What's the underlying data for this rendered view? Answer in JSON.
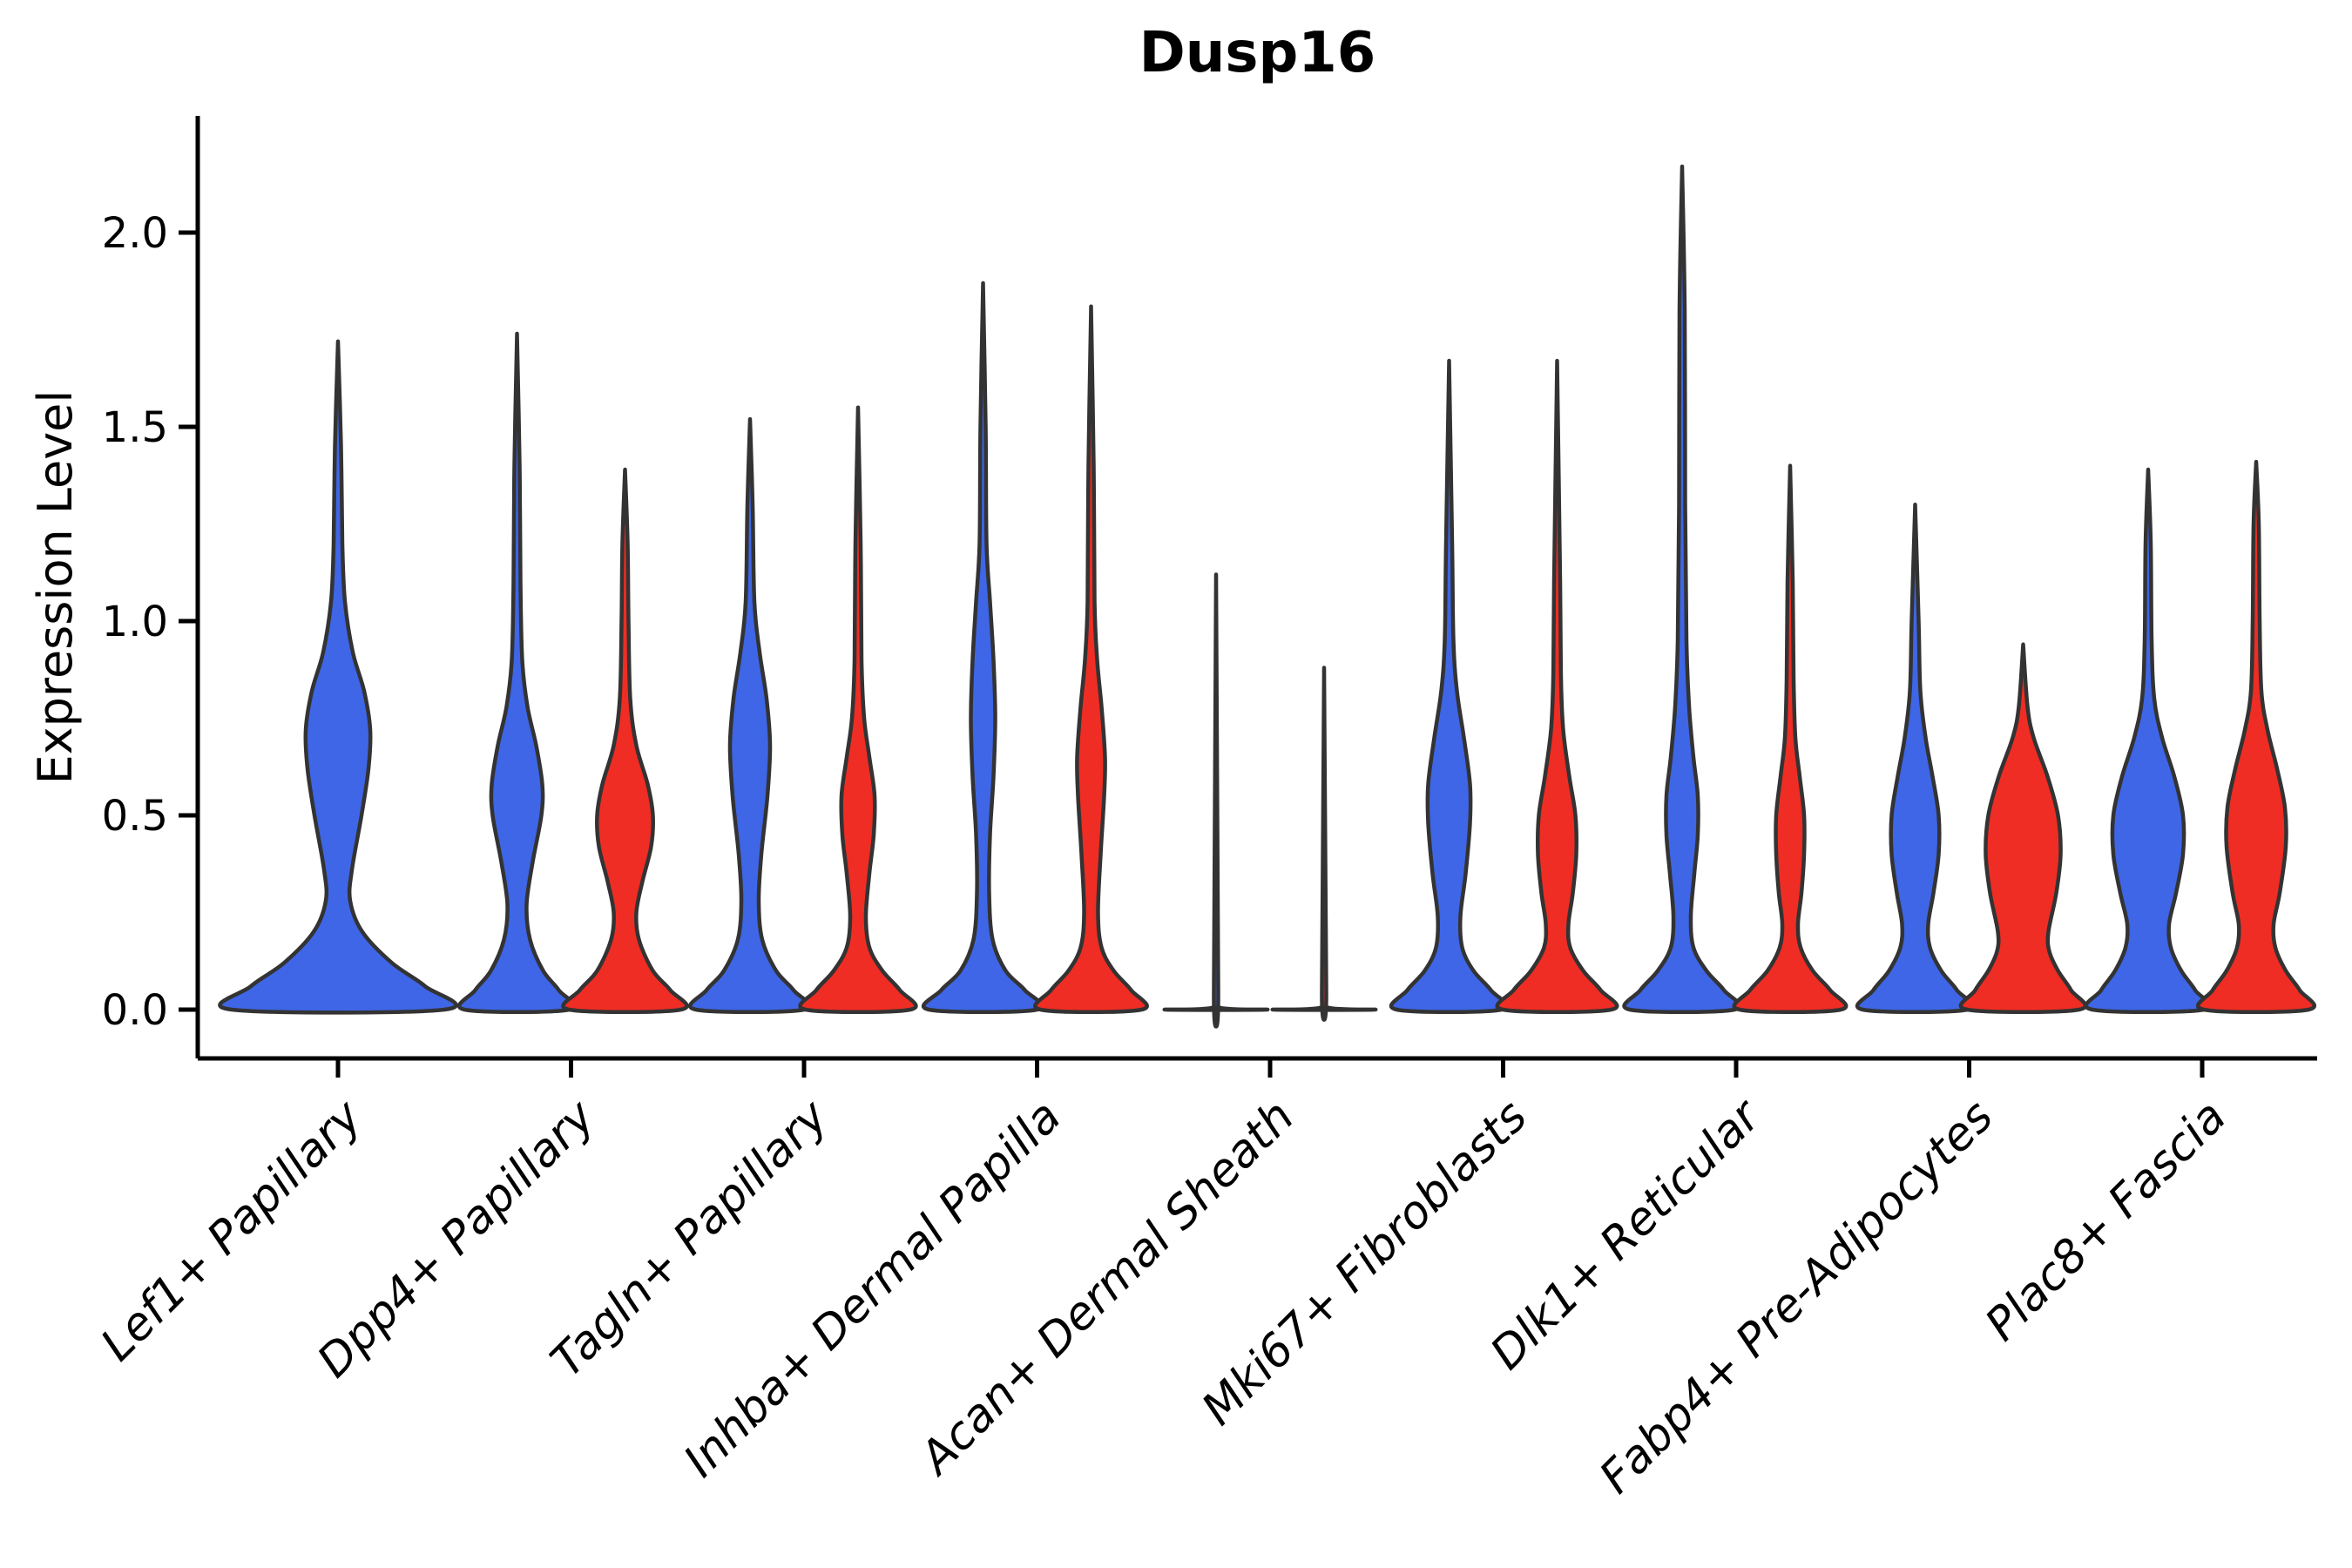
{
  "chart_data": {
    "type": "violin",
    "title": "Dusp16",
    "ylabel": "Expression Level",
    "ylim": [
      -0.12,
      2.3
    ],
    "yticks": [
      0.0,
      0.5,
      1.0,
      1.5,
      2.0
    ],
    "yticklabels": [
      "0.0",
      "0.5",
      "1.0",
      "1.5",
      "2.0"
    ],
    "grid": false,
    "legend": "none",
    "palette": {
      "blue": "#3E66E6",
      "red": "#EF2D24"
    },
    "outline_color": "#333333",
    "axis_color": "#000000",
    "categories": [
      "Lef1+ Papillary",
      "Dpp4+ Papillary",
      "Tagln+ Papillary",
      "Inhba+ Dermal Papilla",
      "Acan+ Dermal Sheath",
      "Mki67+ Fibroblasts",
      "Dlk1+ Reticular",
      "Fabp4+ Pre-Adipocytes",
      "Plac8+ Fascia"
    ],
    "groups": [
      {
        "category": "Lef1+ Papillary",
        "slug": "lef1-papillary",
        "violins": [
          {
            "color": "blue",
            "position": "single",
            "max": 1.72,
            "profile": [
              [
                0,
                122
              ],
              [
                0.06,
                100
              ],
              [
                0.12,
                62
              ],
              [
                0.2,
                28
              ],
              [
                0.28,
                14
              ],
              [
                0.36,
                16
              ],
              [
                0.5,
                27
              ],
              [
                0.62,
                35
              ],
              [
                0.72,
                37
              ],
              [
                0.82,
                30
              ],
              [
                0.92,
                17
              ],
              [
                1.05,
                8
              ],
              [
                1.2,
                5
              ],
              [
                1.45,
                3.5
              ],
              [
                1.72,
                2.5
              ]
            ]
          }
        ]
      },
      {
        "category": "Dpp4+ Papillary",
        "slug": "dpp4-papillary",
        "violins": [
          {
            "color": "blue",
            "position": "left",
            "max": 1.74,
            "profile": [
              [
                0,
                60
              ],
              [
                0.05,
                48
              ],
              [
                0.1,
                30
              ],
              [
                0.18,
                15
              ],
              [
                0.27,
                11
              ],
              [
                0.38,
                18
              ],
              [
                0.5,
                28
              ],
              [
                0.58,
                29
              ],
              [
                0.68,
                22
              ],
              [
                0.78,
                12
              ],
              [
                0.9,
                6
              ],
              [
                1.1,
                4
              ],
              [
                1.4,
                3
              ],
              [
                1.74,
                2.5
              ]
            ]
          },
          {
            "color": "red",
            "position": "right",
            "max": 1.39,
            "profile": [
              [
                0,
                64
              ],
              [
                0.05,
                52
              ],
              [
                0.1,
                32
              ],
              [
                0.18,
                16
              ],
              [
                0.25,
                13
              ],
              [
                0.33,
                20
              ],
              [
                0.42,
                30
              ],
              [
                0.5,
                32
              ],
              [
                0.58,
                26
              ],
              [
                0.68,
                13
              ],
              [
                0.8,
                6
              ],
              [
                1.0,
                4
              ],
              [
                1.2,
                3
              ],
              [
                1.39,
                2.5
              ]
            ]
          }
        ]
      },
      {
        "category": "Tagln+ Papillary",
        "slug": "tagln-papillary",
        "violins": [
          {
            "color": "blue",
            "position": "left",
            "max": 1.52,
            "profile": [
              [
                0,
                62
              ],
              [
                0.05,
                50
              ],
              [
                0.1,
                30
              ],
              [
                0.18,
                14
              ],
              [
                0.28,
                10
              ],
              [
                0.4,
                13
              ],
              [
                0.55,
                20
              ],
              [
                0.68,
                23
              ],
              [
                0.8,
                19
              ],
              [
                0.92,
                11
              ],
              [
                1.05,
                5
              ],
              [
                1.3,
                3
              ],
              [
                1.52,
                2.5
              ]
            ]
          },
          {
            "color": "red",
            "position": "right",
            "max": 1.55,
            "profile": [
              [
                0,
                60
              ],
              [
                0.05,
                48
              ],
              [
                0.1,
                28
              ],
              [
                0.16,
                13
              ],
              [
                0.24,
                9
              ],
              [
                0.35,
                13
              ],
              [
                0.45,
                18
              ],
              [
                0.55,
                19
              ],
              [
                0.65,
                13
              ],
              [
                0.75,
                7
              ],
              [
                0.9,
                4
              ],
              [
                1.2,
                3
              ],
              [
                1.55,
                2.5
              ]
            ]
          }
        ]
      },
      {
        "category": "Inhba+ Dermal Papilla",
        "slug": "inhba-dermal-papilla",
        "violins": [
          {
            "color": "blue",
            "position": "left",
            "max": 1.87,
            "profile": [
              [
                0,
                62
              ],
              [
                0.05,
                48
              ],
              [
                0.1,
                26
              ],
              [
                0.18,
                11
              ],
              [
                0.3,
                7
              ],
              [
                0.45,
                8
              ],
              [
                0.6,
                12
              ],
              [
                0.75,
                14
              ],
              [
                0.9,
                12
              ],
              [
                1.05,
                8
              ],
              [
                1.2,
                4
              ],
              [
                1.5,
                3
              ],
              [
                1.87,
                2.5
              ]
            ]
          },
          {
            "color": "red",
            "position": "right",
            "max": 1.81,
            "profile": [
              [
                0,
                58
              ],
              [
                0.05,
                46
              ],
              [
                0.1,
                26
              ],
              [
                0.16,
                12
              ],
              [
                0.25,
                8
              ],
              [
                0.4,
                11
              ],
              [
                0.55,
                15
              ],
              [
                0.65,
                16
              ],
              [
                0.78,
                12
              ],
              [
                0.9,
                7
              ],
              [
                1.05,
                4
              ],
              [
                1.4,
                3
              ],
              [
                1.81,
                2.5
              ]
            ]
          }
        ]
      },
      {
        "category": "Acan+ Dermal Sheath",
        "slug": "acan-dermal-sheath",
        "violins": [
          {
            "color": "blue",
            "position": "left",
            "max": 1.12,
            "profile": [
              [
                0,
                58
              ],
              [
                0.006,
                3
              ],
              [
                0.05,
                2.5
              ],
              [
                1.12,
                2
              ]
            ]
          },
          {
            "color": "red",
            "position": "right",
            "max": 0.88,
            "profile": [
              [
                0,
                58
              ],
              [
                0.006,
                3
              ],
              [
                0.05,
                2.5
              ],
              [
                0.88,
                2
              ]
            ]
          }
        ]
      },
      {
        "category": "Mki67+ Fibroblasts",
        "slug": "mki67-fibroblasts",
        "violins": [
          {
            "color": "blue",
            "position": "left",
            "max": 1.67,
            "profile": [
              [
                0,
                60
              ],
              [
                0.05,
                48
              ],
              [
                0.1,
                28
              ],
              [
                0.16,
                15
              ],
              [
                0.24,
                13
              ],
              [
                0.35,
                19
              ],
              [
                0.48,
                24
              ],
              [
                0.58,
                24
              ],
              [
                0.7,
                17
              ],
              [
                0.82,
                9
              ],
              [
                0.95,
                5
              ],
              [
                1.2,
                3.5
              ],
              [
                1.67,
                2.5
              ]
            ]
          },
          {
            "color": "red",
            "position": "right",
            "max": 1.67,
            "profile": [
              [
                0,
                62
              ],
              [
                0.05,
                50
              ],
              [
                0.1,
                30
              ],
              [
                0.16,
                15
              ],
              [
                0.22,
                13
              ],
              [
                0.3,
                18
              ],
              [
                0.4,
                22
              ],
              [
                0.5,
                21
              ],
              [
                0.6,
                14
              ],
              [
                0.72,
                7
              ],
              [
                0.85,
                4.5
              ],
              [
                1.1,
                3.5
              ],
              [
                1.67,
                2.5
              ]
            ]
          }
        ]
      },
      {
        "category": "Dlk1+ Reticular",
        "slug": "dlk1-reticular",
        "violins": [
          {
            "color": "blue",
            "position": "left",
            "max": 2.17,
            "profile": [
              [
                0,
                60
              ],
              [
                0.05,
                48
              ],
              [
                0.1,
                28
              ],
              [
                0.16,
                13
              ],
              [
                0.24,
                10
              ],
              [
                0.35,
                14
              ],
              [
                0.45,
                18
              ],
              [
                0.55,
                18
              ],
              [
                0.65,
                13
              ],
              [
                0.78,
                8
              ],
              [
                0.95,
                5
              ],
              [
                1.3,
                3.5
              ],
              [
                1.8,
                3
              ],
              [
                2.17,
                2.5
              ]
            ]
          },
          {
            "color": "red",
            "position": "right",
            "max": 1.4,
            "profile": [
              [
                0,
                58
              ],
              [
                0.05,
                46
              ],
              [
                0.1,
                26
              ],
              [
                0.16,
                12
              ],
              [
                0.22,
                9
              ],
              [
                0.3,
                13
              ],
              [
                0.4,
                16
              ],
              [
                0.5,
                16
              ],
              [
                0.6,
                11
              ],
              [
                0.7,
                6
              ],
              [
                0.85,
                4
              ],
              [
                1.1,
                3
              ],
              [
                1.4,
                2.5
              ]
            ]
          }
        ]
      },
      {
        "category": "Fabp4+ Pre-Adipocytes",
        "slug": "fabp4-pre-adipocytes",
        "violins": [
          {
            "color": "blue",
            "position": "left",
            "max": 1.3,
            "profile": [
              [
                0,
                60
              ],
              [
                0.05,
                48
              ],
              [
                0.1,
                30
              ],
              [
                0.16,
                17
              ],
              [
                0.22,
                15
              ],
              [
                0.3,
                21
              ],
              [
                0.4,
                27
              ],
              [
                0.5,
                27
              ],
              [
                0.6,
                20
              ],
              [
                0.7,
                12
              ],
              [
                0.82,
                6
              ],
              [
                1.0,
                4
              ],
              [
                1.3,
                2.5
              ]
            ]
          },
          {
            "color": "red",
            "position": "right",
            "max": 0.94,
            "profile": [
              [
                0,
                64
              ],
              [
                0.05,
                55
              ],
              [
                0.1,
                40
              ],
              [
                0.15,
                30
              ],
              [
                0.2,
                29
              ],
              [
                0.3,
                38
              ],
              [
                0.4,
                43
              ],
              [
                0.5,
                40
              ],
              [
                0.6,
                28
              ],
              [
                0.7,
                12
              ],
              [
                0.78,
                5
              ],
              [
                0.94,
                3
              ]
            ]
          }
        ]
      },
      {
        "category": "Plac8+ Fascia",
        "slug": "plac8-fascia",
        "violins": [
          {
            "color": "blue",
            "position": "left",
            "max": 1.39,
            "profile": [
              [
                0,
                64
              ],
              [
                0.05,
                54
              ],
              [
                0.1,
                38
              ],
              [
                0.16,
                26
              ],
              [
                0.22,
                24
              ],
              [
                0.3,
                32
              ],
              [
                0.4,
                40
              ],
              [
                0.5,
                40
              ],
              [
                0.6,
                30
              ],
              [
                0.7,
                16
              ],
              [
                0.8,
                7
              ],
              [
                0.95,
                4
              ],
              [
                1.2,
                3
              ],
              [
                1.39,
                2.5
              ]
            ]
          },
          {
            "color": "red",
            "position": "right",
            "max": 1.41,
            "profile": [
              [
                0,
                60
              ],
              [
                0.05,
                50
              ],
              [
                0.1,
                34
              ],
              [
                0.16,
                22
              ],
              [
                0.22,
                20
              ],
              [
                0.3,
                27
              ],
              [
                0.42,
                34
              ],
              [
                0.52,
                33
              ],
              [
                0.62,
                24
              ],
              [
                0.72,
                13
              ],
              [
                0.82,
                6
              ],
              [
                1.0,
                4
              ],
              [
                1.25,
                3
              ],
              [
                1.41,
                2.5
              ]
            ]
          }
        ]
      }
    ]
  }
}
